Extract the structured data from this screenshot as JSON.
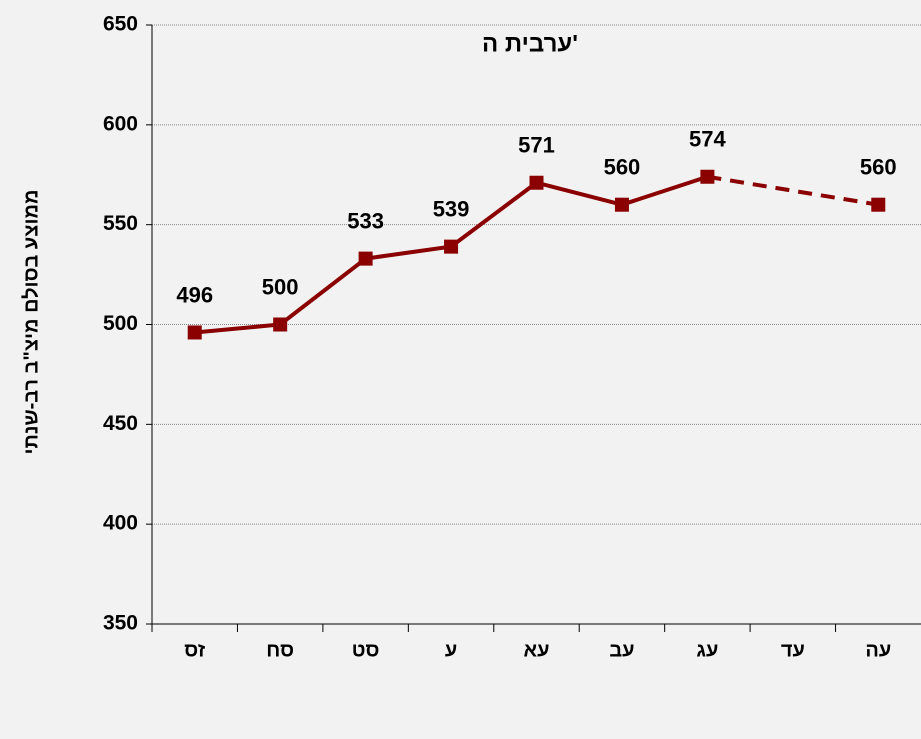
{
  "chart_data": {
    "type": "line",
    "title": "ערבית ה'",
    "y_label": "ממוצע בסולם מיצ\"ב רב-שנתי",
    "categories": [
      "זס",
      "סח",
      "סט",
      "ע",
      "עא",
      "עב",
      "עג",
      "עד",
      "עה"
    ],
    "series": [
      {
        "name": "ערבית ה'",
        "color": "#8b0000",
        "values": [
          496,
          500,
          533,
          539,
          571,
          560,
          574,
          null,
          560
        ]
      }
    ],
    "ylim": [
      350,
      650
    ],
    "yticks": [
      350,
      400,
      450,
      500,
      550,
      600,
      650
    ],
    "grid": true
  }
}
